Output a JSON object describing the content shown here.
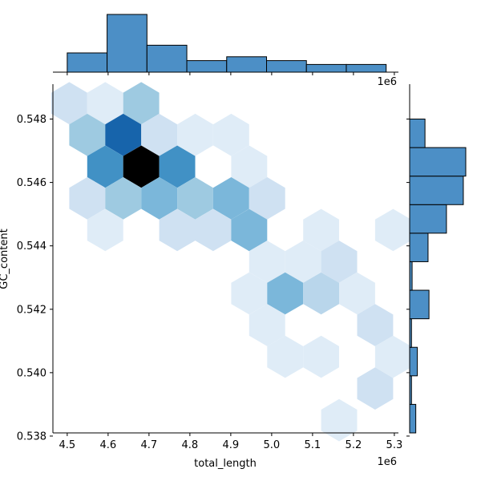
{
  "chart_data": {
    "type": "hexbin-joint",
    "xlabel": "total_length",
    "ylabel": "GC_content",
    "x_offset_text": "1e6",
    "top_offset_text": "1e6",
    "xlim": [
      4.465,
      5.31
    ],
    "ylim": [
      0.5381,
      0.5491
    ],
    "xticks": [
      4.5,
      4.6,
      4.7,
      4.8,
      4.9,
      5.0,
      5.1,
      5.2,
      5.3
    ],
    "xtick_labels": [
      "4.5",
      "4.6",
      "4.7",
      "4.8",
      "4.9",
      "5.0",
      "5.1",
      "5.2",
      "5.3"
    ],
    "yticks": [
      0.538,
      0.54,
      0.542,
      0.544,
      0.546,
      0.548
    ],
    "ytick_labels": [
      "0.538",
      "0.540",
      "0.542",
      "0.544",
      "0.546",
      "0.548"
    ],
    "colormap": "Blues",
    "hexbins": [
      {
        "x": 4.505,
        "y": 0.5485,
        "count": 2
      },
      {
        "x": 4.593,
        "y": 0.5485,
        "count": 1
      },
      {
        "x": 4.681,
        "y": 0.5485,
        "count": 4
      },
      {
        "x": 4.549,
        "y": 0.5475,
        "count": 4
      },
      {
        "x": 4.637,
        "y": 0.5475,
        "count": 9
      },
      {
        "x": 4.725,
        "y": 0.5475,
        "count": 2
      },
      {
        "x": 4.813,
        "y": 0.5475,
        "count": 1
      },
      {
        "x": 4.901,
        "y": 0.5475,
        "count": 1
      },
      {
        "x": 4.593,
        "y": 0.5465,
        "count": 7
      },
      {
        "x": 4.681,
        "y": 0.5465,
        "count": 12
      },
      {
        "x": 4.769,
        "y": 0.5465,
        "count": 7
      },
      {
        "x": 4.945,
        "y": 0.5465,
        "count": 1
      },
      {
        "x": 4.549,
        "y": 0.5455,
        "count": 2
      },
      {
        "x": 4.637,
        "y": 0.5455,
        "count": 4
      },
      {
        "x": 4.725,
        "y": 0.5455,
        "count": 5
      },
      {
        "x": 4.813,
        "y": 0.5455,
        "count": 4
      },
      {
        "x": 4.901,
        "y": 0.5455,
        "count": 5
      },
      {
        "x": 4.989,
        "y": 0.5455,
        "count": 2
      },
      {
        "x": 4.593,
        "y": 0.5445,
        "count": 1
      },
      {
        "x": 4.769,
        "y": 0.5445,
        "count": 2
      },
      {
        "x": 4.857,
        "y": 0.5445,
        "count": 2
      },
      {
        "x": 4.945,
        "y": 0.5445,
        "count": 5
      },
      {
        "x": 5.121,
        "y": 0.5445,
        "count": 1
      },
      {
        "x": 5.297,
        "y": 0.5445,
        "count": 1
      },
      {
        "x": 4.989,
        "y": 0.5435,
        "count": 1
      },
      {
        "x": 5.077,
        "y": 0.5435,
        "count": 1
      },
      {
        "x": 5.165,
        "y": 0.5435,
        "count": 2
      },
      {
        "x": 4.945,
        "y": 0.5425,
        "count": 1
      },
      {
        "x": 5.033,
        "y": 0.5425,
        "count": 5
      },
      {
        "x": 5.121,
        "y": 0.5425,
        "count": 3
      },
      {
        "x": 5.209,
        "y": 0.5425,
        "count": 1
      },
      {
        "x": 4.989,
        "y": 0.5415,
        "count": 1
      },
      {
        "x": 5.253,
        "y": 0.5415,
        "count": 2
      },
      {
        "x": 5.033,
        "y": 0.5405,
        "count": 1
      },
      {
        "x": 5.121,
        "y": 0.5405,
        "count": 1
      },
      {
        "x": 5.297,
        "y": 0.5405,
        "count": 1
      },
      {
        "x": 5.253,
        "y": 0.5395,
        "count": 2
      },
      {
        "x": 5.165,
        "y": 0.5385,
        "count": 1
      }
    ],
    "top_hist": {
      "bins": [
        4.5,
        4.5975,
        4.695,
        4.7925,
        4.89,
        4.9875,
        5.085,
        5.1825,
        5.28
      ],
      "counts": [
        5,
        15,
        7,
        3,
        4,
        3,
        2,
        2
      ]
    },
    "right_hist": {
      "bins": [
        0.5381,
        0.539,
        0.5399,
        0.5408,
        0.5417,
        0.5426,
        0.5435,
        0.5444,
        0.5453,
        0.5462,
        0.5471,
        0.548,
        0.5489
      ],
      "counts": [
        2,
        0.6,
        2.5,
        0.6,
        6.3,
        0.8,
        6,
        12,
        17.5,
        18.3,
        5,
        0
      ]
    },
    "bar_color": "#4c8fc6",
    "bar_edge": "#000000"
  }
}
